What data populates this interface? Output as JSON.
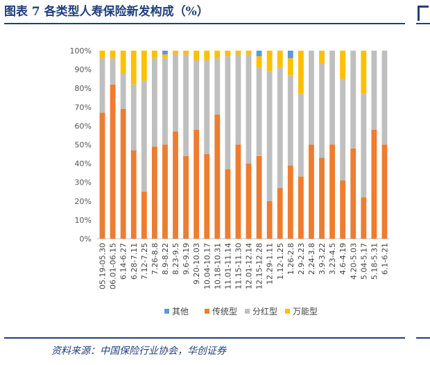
{
  "title": "图表 7  各类型人寿保险新发构成（%）",
  "source": "资料来源：中国保险行业协会，华创证券",
  "chart_data": {
    "type": "bar",
    "stacked": true,
    "percent": true,
    "categories": [
      "05.19-05.30",
      "06.01-06.15",
      "6.14-6.27",
      "6.28-7.11",
      "7.12-7.25",
      "7.26-8.8",
      "8.9-8.22",
      "8.23-9.5",
      "9.6-9.19",
      "9.20-10.03",
      "10.04-10.17",
      "10.18-10.31",
      "11.01-11.14",
      "11.15-11.30",
      "12.01-12.14",
      "12.15-12.28",
      "12.29-1.11",
      "1.12-1.25",
      "1.26-2.8",
      "2.9-2.23",
      "2.24-3.8",
      "3.9-3.22",
      "3.23-4.5",
      "4.6-4.19",
      "4.20-5.03",
      "5.04-5.17",
      "5.18-5.31",
      "6.1-6.21"
    ],
    "series": [
      {
        "name": "传统型",
        "color": "#ed7d31",
        "values": [
          67,
          82,
          69,
          47,
          25,
          49,
          50,
          57,
          44,
          58,
          45,
          66,
          37,
          50,
          40,
          44,
          20,
          27,
          39,
          33,
          50,
          43,
          50,
          31,
          48,
          22,
          58,
          50
        ]
      },
      {
        "name": "分红型",
        "color": "#bfbfbf",
        "values": [
          29,
          14,
          19,
          35,
          59,
          47,
          46,
          41,
          54,
          37,
          50,
          30,
          60,
          48,
          58,
          47,
          69,
          64,
          48,
          44,
          50,
          50,
          50,
          54,
          52,
          55,
          42,
          50
        ]
      },
      {
        "name": "万能型",
        "color": "#ffc000",
        "values": [
          4,
          4,
          12,
          18,
          16,
          4,
          2,
          2,
          2,
          5,
          5,
          4,
          3,
          2,
          2,
          6,
          11,
          9,
          9,
          23,
          0,
          7,
          0,
          15,
          0,
          23,
          0,
          0
        ]
      },
      {
        "name": "其他",
        "color": "#5b9bd5",
        "values": [
          0,
          0,
          0,
          0,
          0,
          0,
          2,
          0,
          0,
          0,
          0,
          0,
          0,
          0,
          0,
          3,
          0,
          0,
          4,
          0,
          0,
          0,
          0,
          0,
          0,
          0,
          0,
          0
        ]
      }
    ],
    "ylim": [
      0,
      100
    ],
    "yticks": [
      "0%",
      "10%",
      "20%",
      "30%",
      "40%",
      "50%",
      "60%",
      "70%",
      "80%",
      "90%",
      "100%"
    ],
    "grid": false,
    "legend_position": "bottom",
    "legend_order": [
      "其他",
      "传统型",
      "分红型",
      "万能型"
    ]
  }
}
